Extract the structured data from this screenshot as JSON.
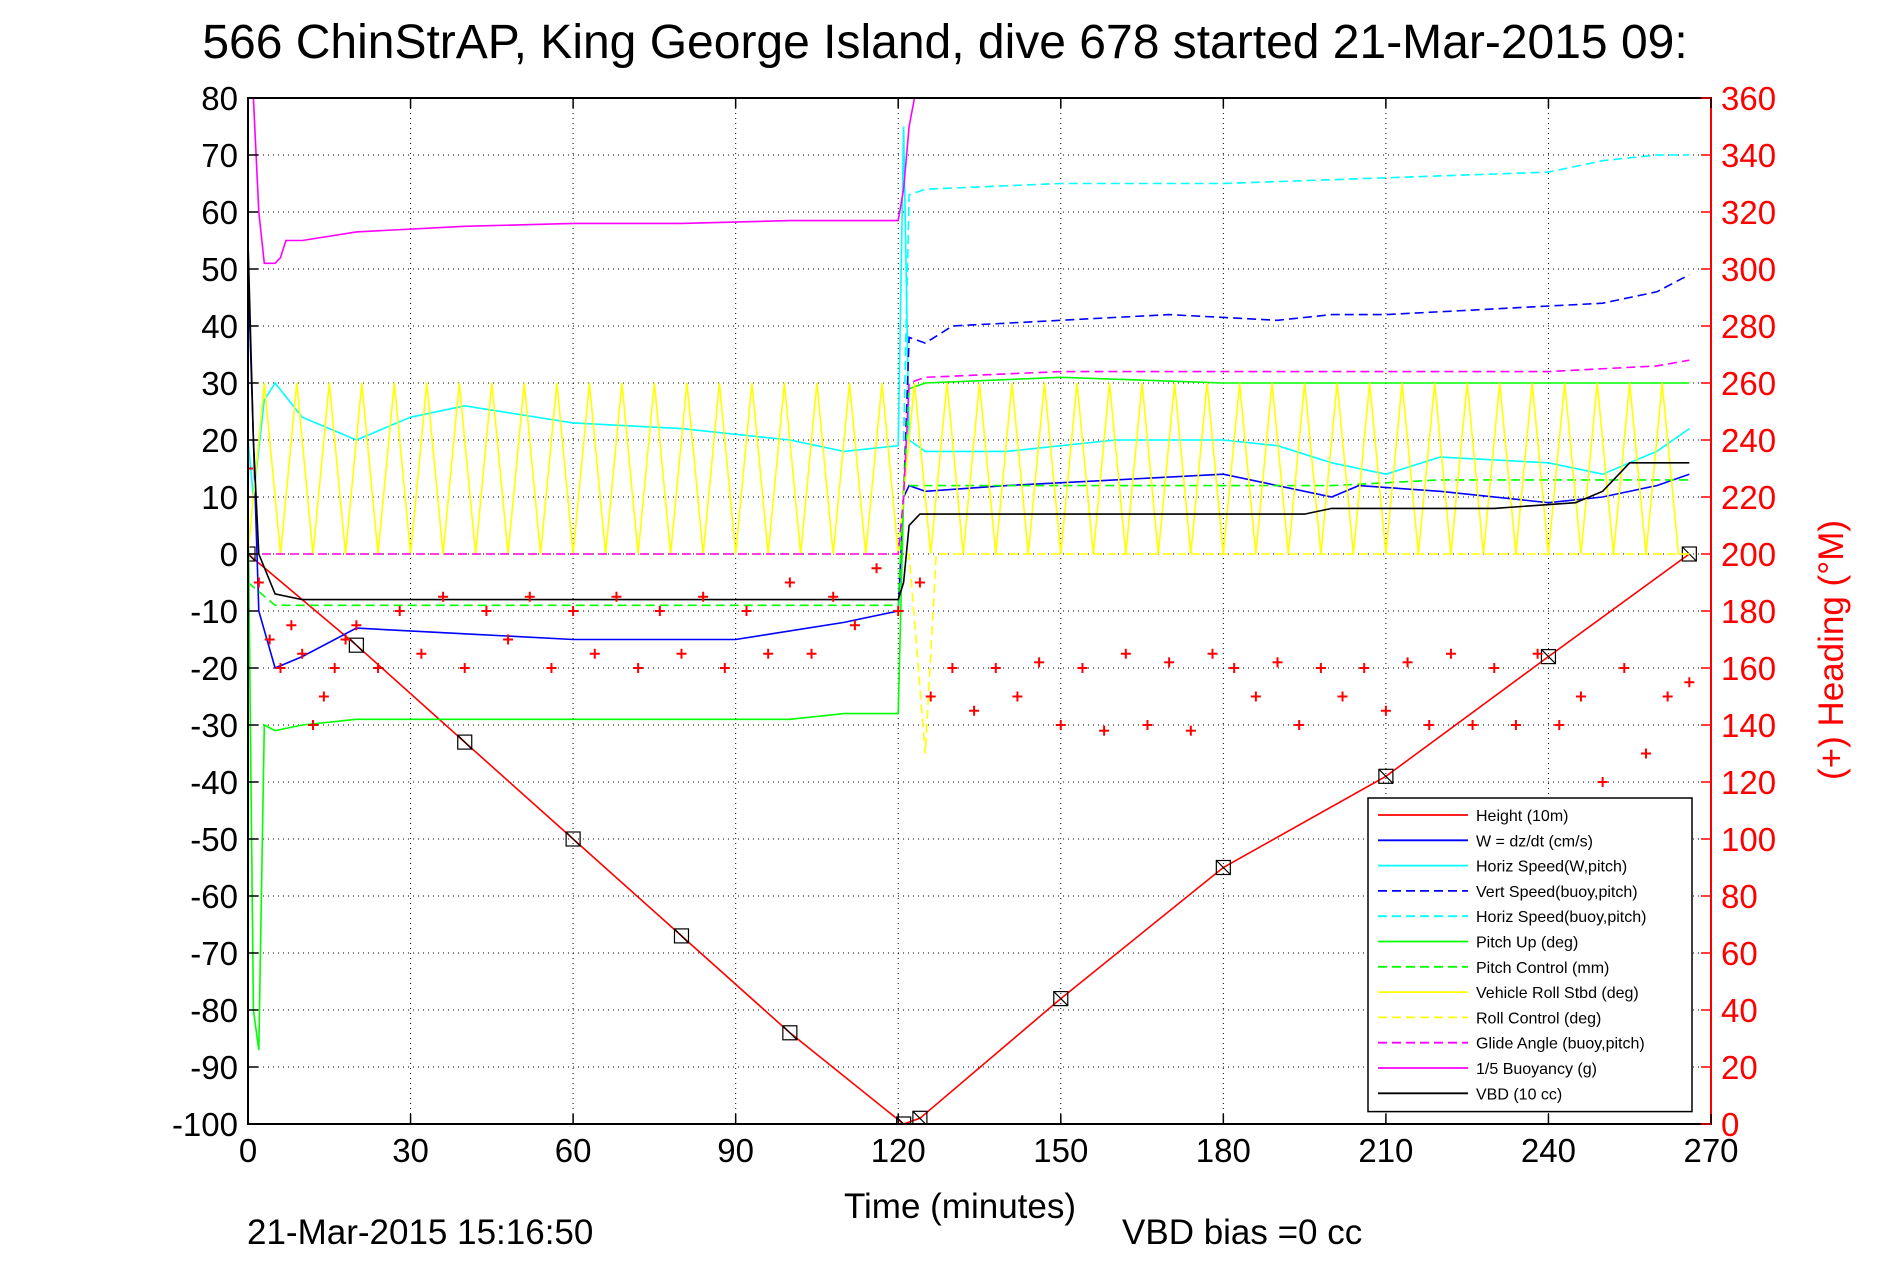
{
  "chart_data": {
    "type": "line",
    "title": "566 ChinStrAP, King George Island, dive 678 started 21-Mar-2015 09:",
    "xlabel": "Time (minutes)",
    "ylabel_right": "(+) Heading (°M)",
    "footer_left": "21-Mar-2015 15:16:50",
    "footer_right": "VBD bias =0 cc",
    "xlim": [
      0,
      270
    ],
    "ylim": [
      -100,
      80
    ],
    "ylim_right": [
      0,
      360
    ],
    "x_ticks": [
      "0",
      "30",
      "60",
      "90",
      "120",
      "150",
      "180",
      "210",
      "240",
      "270"
    ],
    "y_ticks": [
      "80",
      "70",
      "60",
      "50",
      "40",
      "30",
      "20",
      "10",
      "0",
      "-10",
      "-20",
      "-30",
      "-40",
      "-50",
      "-60",
      "-70",
      "-80",
      "-90",
      "-100"
    ],
    "y_ticks_right": [
      "360",
      "340",
      "320",
      "300",
      "280",
      "260",
      "240",
      "220",
      "200",
      "180",
      "160",
      "140",
      "120",
      "100",
      "80",
      "60",
      "40",
      "20",
      "0"
    ],
    "grid": true,
    "legend_position": "bottom-right",
    "legend": [
      {
        "label": "Height (10m)",
        "color": "#ff0000",
        "dash": "solid"
      },
      {
        "label": "W = dz/dt (cm/s)",
        "color": "#0000ff",
        "dash": "solid"
      },
      {
        "label": "Horiz Speed(W,pitch)",
        "color": "#00ffff",
        "dash": "solid"
      },
      {
        "label": "Vert Speed(buoy,pitch)",
        "color": "#0000ff",
        "dash": "dashed"
      },
      {
        "label": "Horiz Speed(buoy,pitch)",
        "color": "#00ffff",
        "dash": "dashed"
      },
      {
        "label": "Pitch Up (deg)",
        "color": "#00ff00",
        "dash": "solid"
      },
      {
        "label": "Pitch Control (mm)",
        "color": "#00ff00",
        "dash": "dashed"
      },
      {
        "label": "Vehicle Roll Stbd (deg)",
        "color": "#ffff00",
        "dash": "solid"
      },
      {
        "label": "Roll Control (deg)",
        "color": "#ffff00",
        "dash": "dashed"
      },
      {
        "label": "Glide Angle (buoy,pitch)",
        "color": "#ff00ff",
        "dash": "dashed"
      },
      {
        "label": "1/5 Buoyancy (g)",
        "color": "#ff00ff",
        "dash": "solid"
      },
      {
        "label": "VBD (10 cc)",
        "color": "#000000",
        "dash": "solid"
      }
    ],
    "series": [
      {
        "name": "Height (10m)",
        "color": "#ff0000",
        "dash": "solid",
        "markers": "box-x",
        "x": [
          0,
          20,
          40,
          60,
          80,
          100,
          121,
          124,
          150,
          180,
          210,
          240,
          266
        ],
        "y": [
          0,
          -16,
          -33,
          -50,
          -67,
          -84,
          -100,
          -99,
          -78,
          -55,
          -39,
          -18,
          0
        ]
      },
      {
        "name": "W = dz/dt (cm/s)",
        "color": "#0000ff",
        "dash": "solid",
        "x": [
          0,
          2,
          5,
          10,
          20,
          40,
          60,
          90,
          110,
          120,
          121,
          122,
          125,
          140,
          160,
          180,
          200,
          205,
          220,
          240,
          250,
          260,
          266
        ],
        "y": [
          50,
          -10,
          -20,
          -18,
          -13,
          -14,
          -15,
          -15,
          -12,
          -10,
          10,
          12,
          11,
          12,
          13,
          14,
          10,
          12,
          11,
          9,
          10,
          12,
          14
        ]
      },
      {
        "name": "Horiz Speed(W,pitch)",
        "color": "#00ffff",
        "dash": "solid",
        "x": [
          0,
          1,
          3,
          5,
          10,
          20,
          30,
          40,
          60,
          80,
          100,
          110,
          120,
          121,
          122,
          125,
          140,
          160,
          180,
          190,
          200,
          210,
          220,
          240,
          250,
          260,
          266
        ],
        "y": [
          20,
          10,
          27,
          30,
          24,
          20,
          24,
          26,
          23,
          22,
          20,
          18,
          19,
          75,
          20,
          18,
          18,
          20,
          20,
          19,
          16,
          14,
          17,
          16,
          14,
          18,
          22
        ]
      },
      {
        "name": "Vert Speed(buoy,pitch)",
        "color": "#0000ff",
        "dash": "dashed",
        "x": [
          121,
          122,
          125,
          130,
          150,
          170,
          190,
          200,
          210,
          230,
          250,
          260,
          266
        ],
        "y": [
          10,
          38,
          37,
          40,
          41,
          42,
          41,
          42,
          42,
          43,
          44,
          46,
          49
        ]
      },
      {
        "name": "Horiz Speed(buoy,pitch)",
        "color": "#00ffff",
        "dash": "dashed",
        "x": [
          121,
          122,
          125,
          150,
          180,
          210,
          240,
          250,
          260,
          266
        ],
        "y": [
          20,
          63,
          64,
          65,
          65,
          66,
          67,
          69,
          70,
          70
        ]
      },
      {
        "name": "Pitch Up (deg)",
        "color": "#00ff00",
        "dash": "solid",
        "x": [
          0,
          1,
          2,
          3,
          5,
          10,
          20,
          40,
          60,
          80,
          100,
          110,
          120,
          121,
          122,
          125,
          150,
          180,
          210,
          240,
          266
        ],
        "y": [
          10,
          -80,
          -87,
          -30,
          -31,
          -30,
          -29,
          -29,
          -29,
          -29,
          -29,
          -28,
          -28,
          10,
          29,
          30,
          31,
          30,
          30,
          30,
          30
        ]
      },
      {
        "name": "Pitch Control (mm)",
        "color": "#00ff00",
        "dash": "dashed",
        "x": [
          0,
          5,
          20,
          60,
          100,
          120,
          121,
          122,
          150,
          180,
          200,
          220,
          240,
          260,
          266
        ],
        "y": [
          -5,
          -9,
          -9,
          -9,
          -9,
          -9,
          12,
          12,
          12,
          12,
          12,
          13,
          13,
          13,
          13
        ]
      },
      {
        "name": "Vehicle Roll Stbd (deg)",
        "color": "#ffff00",
        "dash": "solid",
        "x": [
          0,
          3,
          6,
          9,
          12,
          15,
          18,
          21,
          24,
          27,
          30,
          33,
          36,
          39,
          42,
          45,
          48,
          51,
          54,
          57,
          60,
          63,
          66,
          69,
          72,
          75,
          78,
          81,
          84,
          87,
          90,
          93,
          96,
          99,
          102,
          105,
          108,
          111,
          114,
          117,
          120,
          123,
          126,
          129,
          132,
          135,
          138,
          141,
          144,
          147,
          150,
          153,
          156,
          159,
          162,
          165,
          168,
          171,
          174,
          177,
          180,
          183,
          186,
          189,
          192,
          195,
          198,
          201,
          204,
          207,
          210,
          213,
          216,
          219,
          222,
          225,
          228,
          231,
          234,
          237,
          240,
          243,
          246,
          249,
          252,
          255,
          258,
          261,
          264,
          266
        ],
        "y": [
          0,
          30,
          0,
          30,
          0,
          30,
          0,
          30,
          0,
          30,
          0,
          30,
          0,
          30,
          0,
          30,
          0,
          30,
          0,
          30,
          0,
          30,
          0,
          30,
          0,
          30,
          0,
          30,
          0,
          30,
          0,
          30,
          0,
          30,
          0,
          30,
          0,
          30,
          0,
          30,
          0,
          30,
          0,
          30,
          0,
          30,
          0,
          30,
          0,
          30,
          0,
          30,
          0,
          30,
          0,
          30,
          0,
          30,
          0,
          30,
          0,
          30,
          0,
          30,
          0,
          30,
          0,
          30,
          0,
          30,
          0,
          30,
          0,
          30,
          0,
          30,
          0,
          30,
          0,
          30,
          0,
          30,
          0,
          30,
          0,
          30,
          0,
          30,
          0,
          0
        ]
      },
      {
        "name": "Roll Control (deg)",
        "color": "#ffff00",
        "dash": "dashed",
        "x": [
          0,
          60,
          121,
          122,
          125,
          127,
          200,
          266
        ],
        "y": [
          0,
          0,
          0,
          0,
          -35,
          0,
          0,
          0
        ]
      },
      {
        "name": "Glide Angle (buoy,pitch)",
        "color": "#ff00ff",
        "dash": "dashed",
        "x": [
          0,
          60,
          120,
          121,
          122,
          125,
          150,
          180,
          210,
          240,
          260,
          266
        ],
        "y": [
          0,
          0,
          0,
          10,
          30,
          31,
          32,
          32,
          32,
          32,
          33,
          34
        ]
      },
      {
        "name": "1/5 Buoyancy (g)",
        "color": "#ff00ff",
        "dash": "solid",
        "x": [
          1,
          2,
          3,
          5,
          6,
          7,
          10,
          20,
          40,
          60,
          80,
          100,
          120,
          121,
          122,
          123
        ],
        "y": [
          80,
          60,
          51,
          51,
          52,
          55,
          55,
          56.5,
          57.5,
          58,
          58,
          58.5,
          58.5,
          64,
          75,
          80
        ]
      },
      {
        "name": "VBD (10 cc)",
        "color": "#000000",
        "dash": "solid",
        "x": [
          0,
          1,
          2,
          5,
          10,
          20,
          60,
          100,
          120,
          121,
          122,
          124,
          150,
          180,
          195,
          200,
          230,
          245,
          250,
          255,
          266
        ],
        "y": [
          55,
          20,
          0,
          -7,
          -8,
          -8,
          -8,
          -8,
          -8,
          -5,
          5,
          7,
          7,
          7,
          7,
          8,
          8,
          9,
          11,
          16,
          16
        ]
      },
      {
        "name": "Heading",
        "color": "#ff0000",
        "dash": "none",
        "markers": "plus",
        "axis": "right",
        "x": [
          0,
          2,
          4,
          6,
          8,
          10,
          12,
          14,
          16,
          18,
          20,
          24,
          28,
          32,
          36,
          40,
          44,
          48,
          52,
          56,
          60,
          64,
          68,
          72,
          76,
          80,
          84,
          88,
          92,
          96,
          100,
          104,
          108,
          112,
          116,
          120,
          124,
          126,
          130,
          134,
          138,
          142,
          146,
          150,
          154,
          158,
          162,
          166,
          170,
          174,
          178,
          182,
          186,
          190,
          194,
          198,
          202,
          206,
          210,
          214,
          218,
          222,
          226,
          230,
          234,
          238,
          242,
          246,
          250,
          254,
          258,
          262,
          266
        ],
        "y": [
          230,
          190,
          170,
          160,
          175,
          165,
          140,
          150,
          160,
          170,
          175,
          160,
          180,
          165,
          185,
          160,
          180,
          170,
          185,
          160,
          180,
          165,
          185,
          160,
          180,
          165,
          185,
          160,
          180,
          165,
          190,
          165,
          185,
          175,
          195,
          180,
          190,
          150,
          160,
          145,
          160,
          150,
          162,
          140,
          160,
          138,
          165,
          140,
          162,
          138,
          165,
          160,
          150,
          162,
          140,
          160,
          150,
          160,
          145,
          162,
          140,
          165,
          140,
          160,
          140,
          165,
          140,
          150,
          120,
          160,
          130,
          150,
          155
        ]
      }
    ]
  }
}
